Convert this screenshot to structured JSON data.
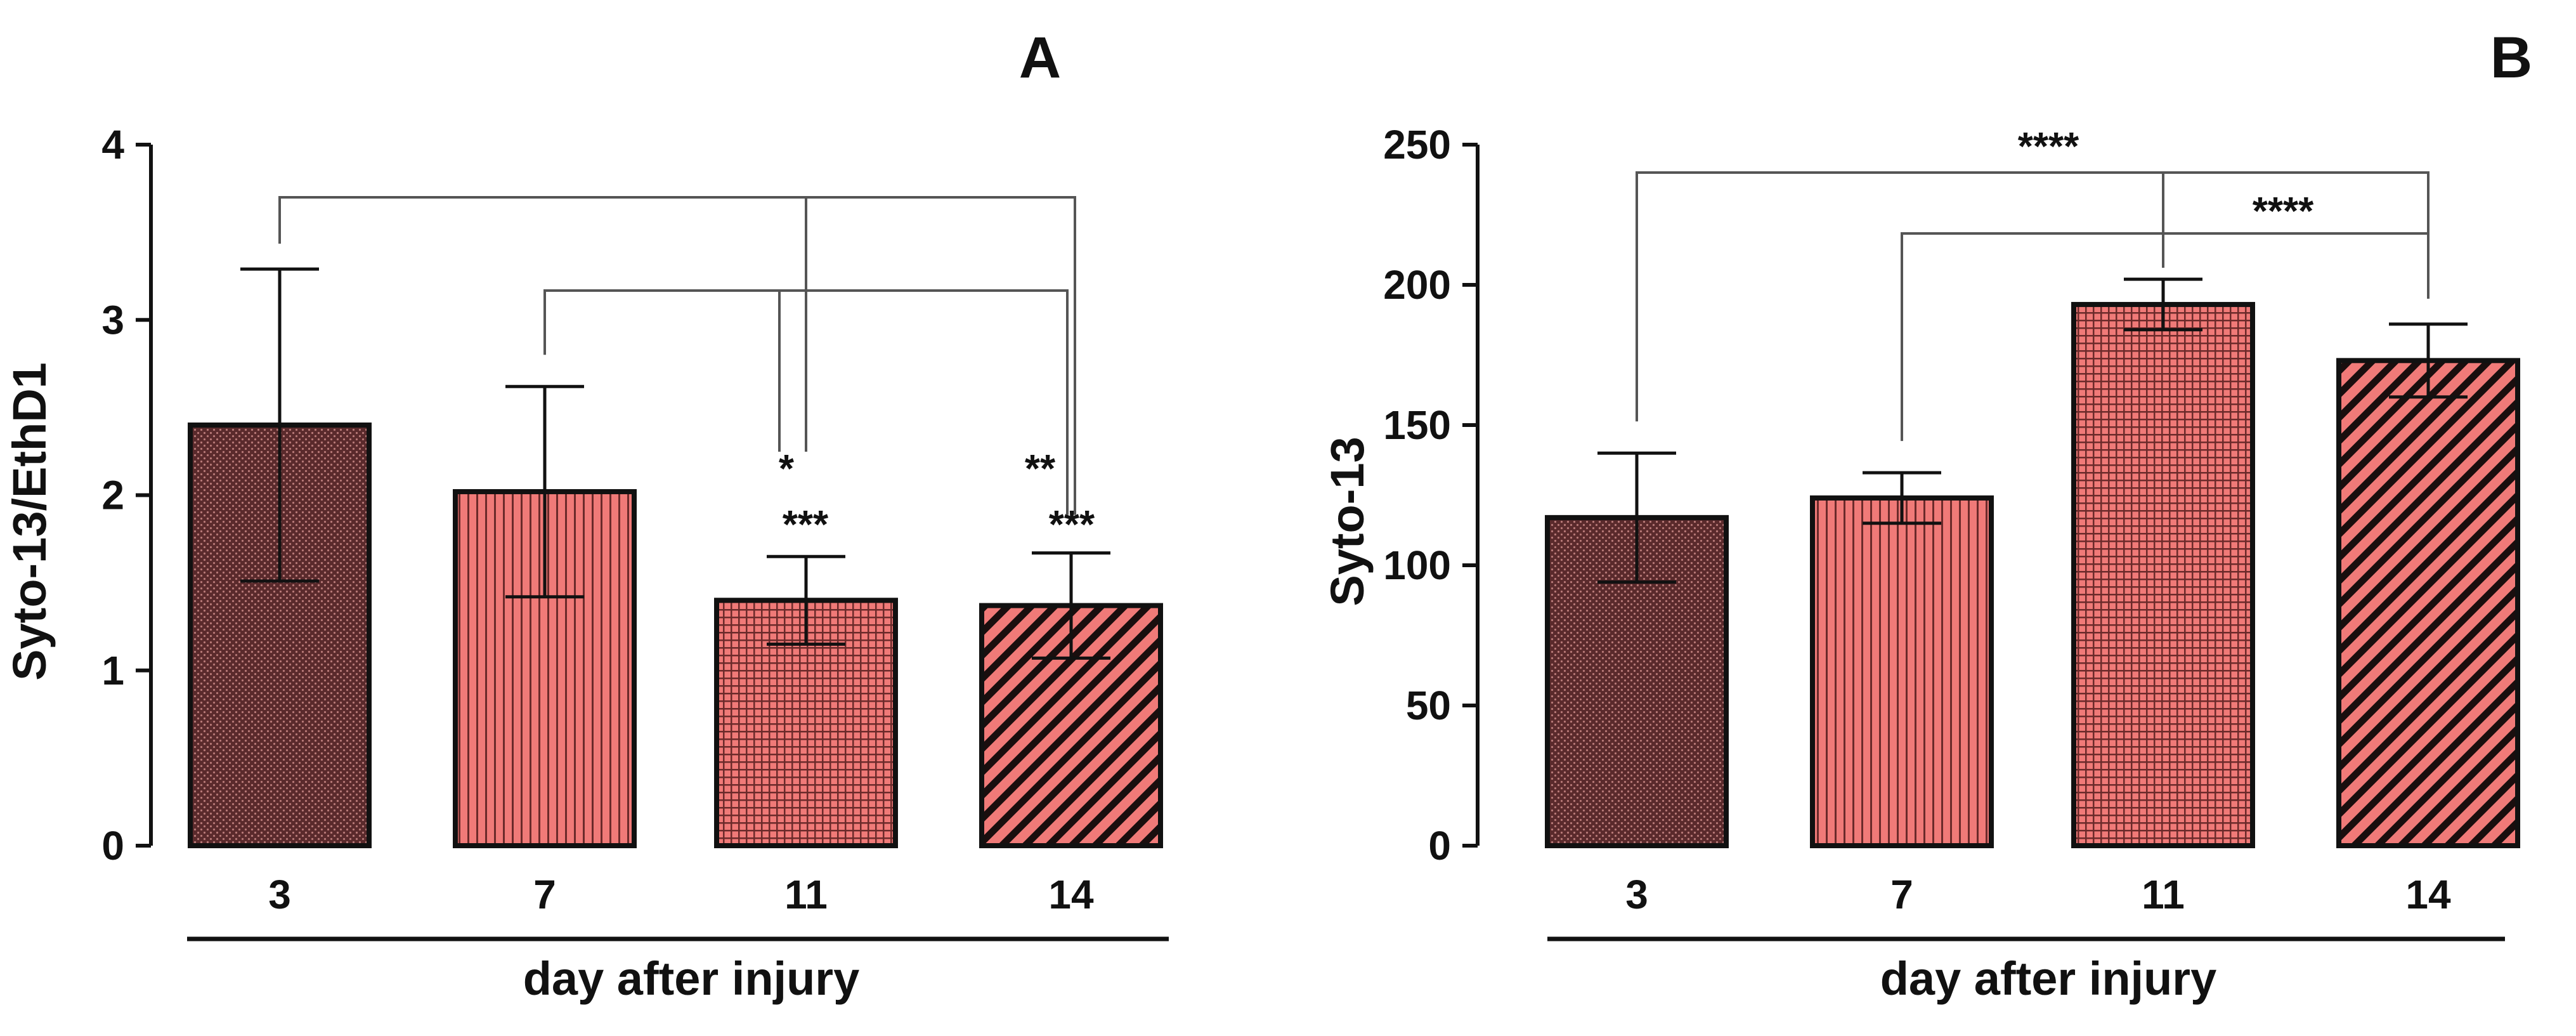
{
  "figure": {
    "panels": [
      "A",
      "B"
    ]
  },
  "colors": {
    "bar_dark": "#5a2a2c",
    "bar_light": "#f07a78",
    "ink": "#111111",
    "bracket": "#555555"
  },
  "chart_data": [
    {
      "panel": "A",
      "type": "bar",
      "title": "A",
      "xlabel": "day after injury",
      "ylabel": "Syto-13/EthD1",
      "categories": [
        "3",
        "7",
        "11",
        "14"
      ],
      "values": [
        2.4,
        2.02,
        1.4,
        1.37
      ],
      "error": [
        0.89,
        0.6,
        0.25,
        0.3
      ],
      "ylim": [
        0,
        4
      ],
      "yticks": [
        "0",
        "1",
        "2",
        "3",
        "4"
      ],
      "fills": [
        "dots-dark",
        "vstripes",
        "grid",
        "diag"
      ],
      "significance": [
        {
          "from": 0,
          "to": 3,
          "drop": 2,
          "label": "*",
          "note": "***"
        },
        {
          "from": 1,
          "to": 3,
          "drop": 2,
          "label": "**",
          "note": "***"
        }
      ],
      "sig_labels": [
        "*",
        "***",
        "**",
        "***"
      ]
    },
    {
      "panel": "B",
      "type": "bar",
      "title": "B",
      "xlabel": "day after injury",
      "ylabel": "Syto-13",
      "categories": [
        "3",
        "7",
        "11",
        "14"
      ],
      "values": [
        117,
        124,
        193,
        173
      ],
      "error": [
        23,
        9,
        9,
        13
      ],
      "ylim": [
        0,
        250
      ],
      "yticks": [
        "0",
        "50",
        "100",
        "150",
        "200",
        "250"
      ],
      "fills": [
        "dots-dark",
        "vstripes",
        "grid",
        "diag"
      ],
      "sig_labels": [
        "****",
        "****"
      ]
    }
  ]
}
